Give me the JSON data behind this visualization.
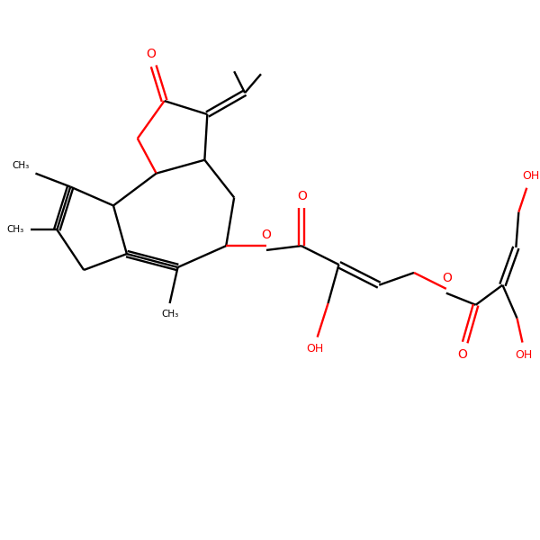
{
  "bg": "#ffffff",
  "bc": "#000000",
  "oc": "#ff0000",
  "lw": 1.7,
  "fs": 9,
  "figsize": [
    6.0,
    6.0
  ],
  "dpi": 100,
  "xlim": [
    0,
    10
  ],
  "ylim": [
    0,
    10
  ]
}
